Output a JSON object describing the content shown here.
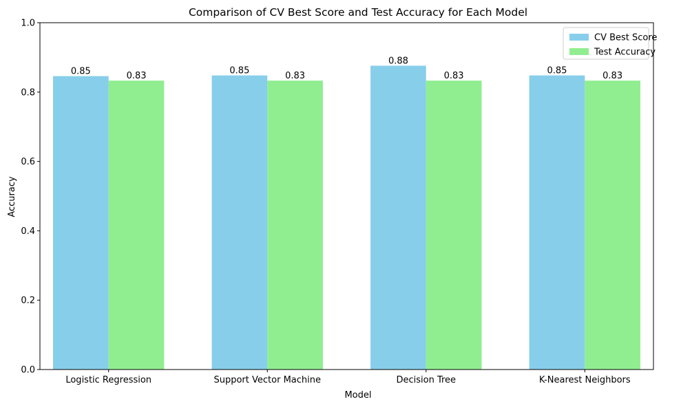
{
  "chart_data": {
    "type": "bar",
    "title": "Comparison of CV Best Score and Test Accuracy for Each Model",
    "xlabel": "Model",
    "ylabel": "Accuracy",
    "ylim": [
      0,
      1.0
    ],
    "yticks": [
      "0.0",
      "0.2",
      "0.4",
      "0.6",
      "0.8",
      "1.0"
    ],
    "categories": [
      "Logistic Regression",
      "Support Vector Machine",
      "Decision Tree",
      "K-Nearest Neighbors"
    ],
    "series": [
      {
        "name": "CV Best Score",
        "color": "#87CEEB",
        "values": [
          0.846,
          0.848,
          0.876,
          0.848
        ],
        "labels": [
          "0.85",
          "0.85",
          "0.88",
          "0.85"
        ]
      },
      {
        "name": "Test Accuracy",
        "color": "#90EE90",
        "values": [
          0.833,
          0.833,
          0.833,
          0.833
        ],
        "labels": [
          "0.83",
          "0.83",
          "0.83",
          "0.83"
        ]
      }
    ],
    "legend": "top-right",
    "grid": false
  }
}
